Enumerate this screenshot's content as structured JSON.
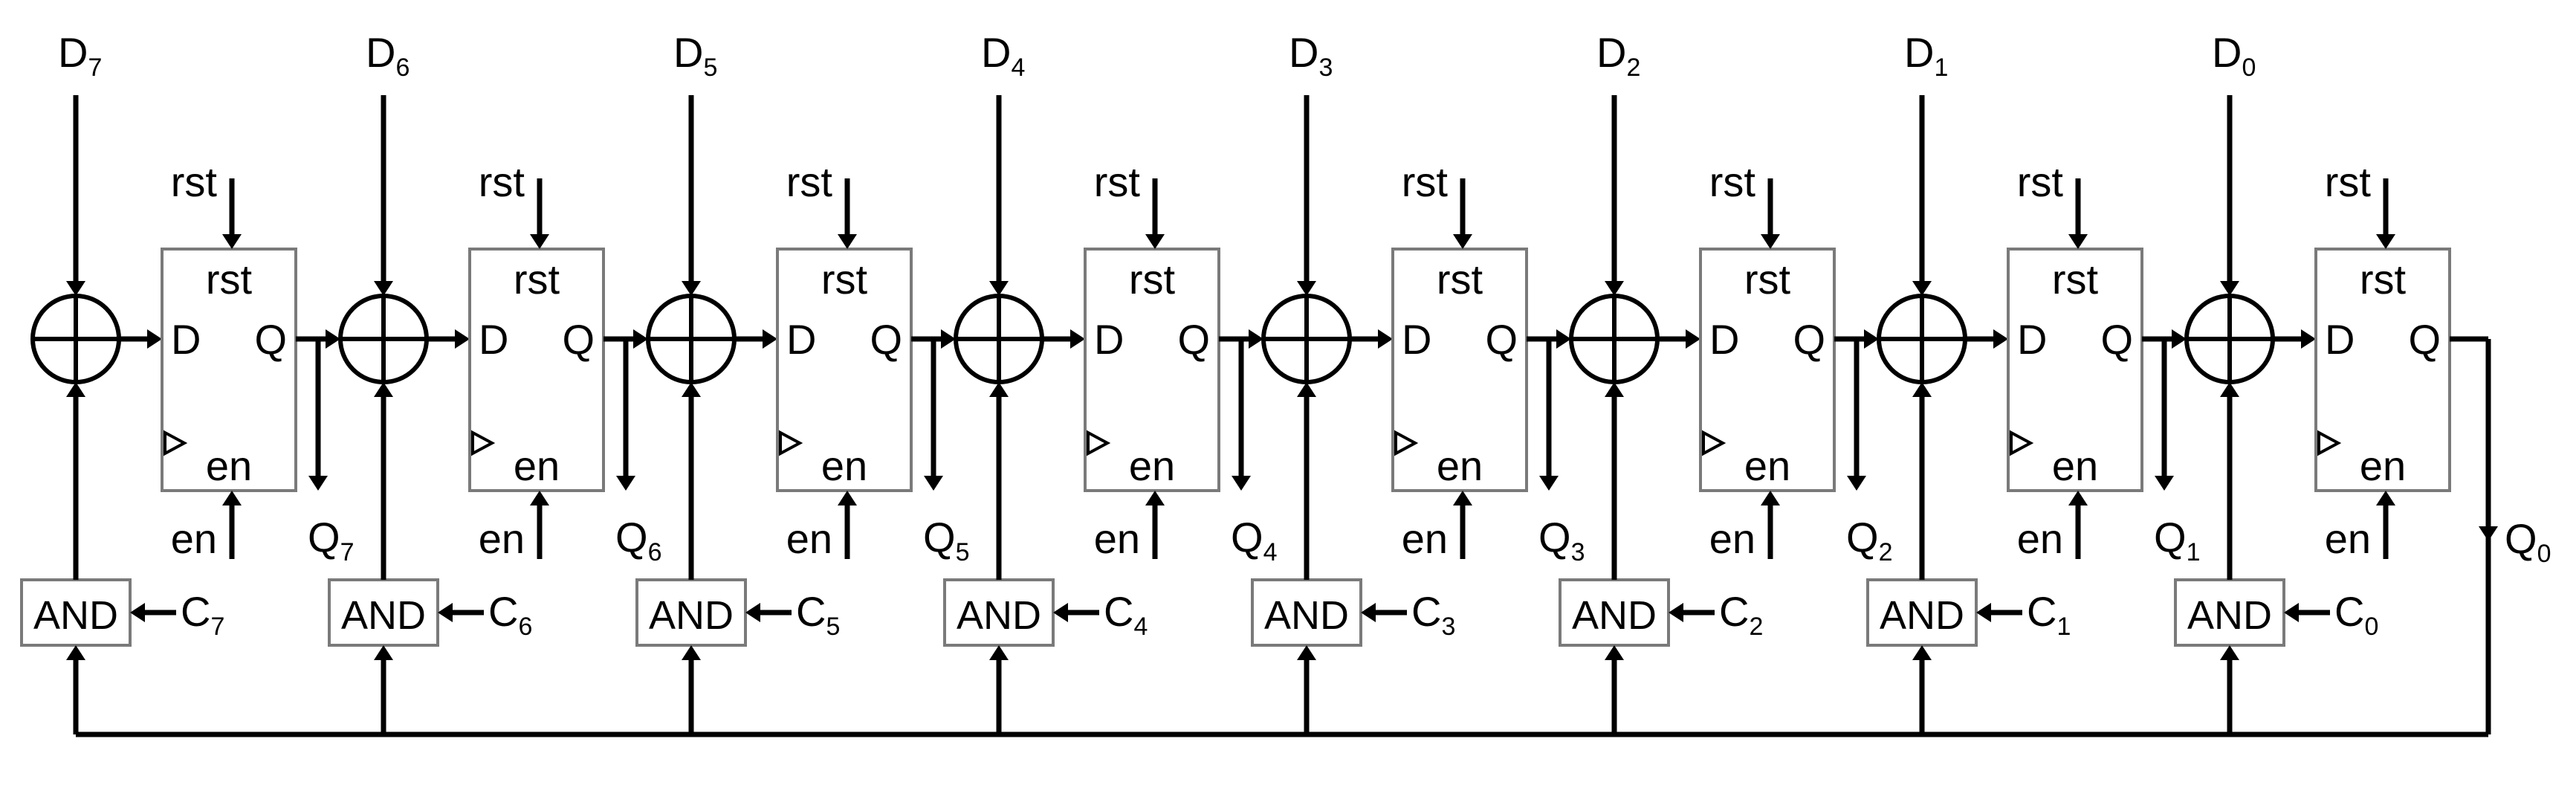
{
  "labels": {
    "rst": "rst",
    "en": "en",
    "d_port": "D",
    "q_port": "Q",
    "and_gate": "AND",
    "d_prefix": "D",
    "q_prefix": "Q",
    "c_prefix": "C"
  },
  "stages": [
    {
      "index": "7"
    },
    {
      "index": "6"
    },
    {
      "index": "5"
    },
    {
      "index": "4"
    },
    {
      "index": "3"
    },
    {
      "index": "2"
    },
    {
      "index": "1"
    },
    {
      "index": "0"
    }
  ]
}
